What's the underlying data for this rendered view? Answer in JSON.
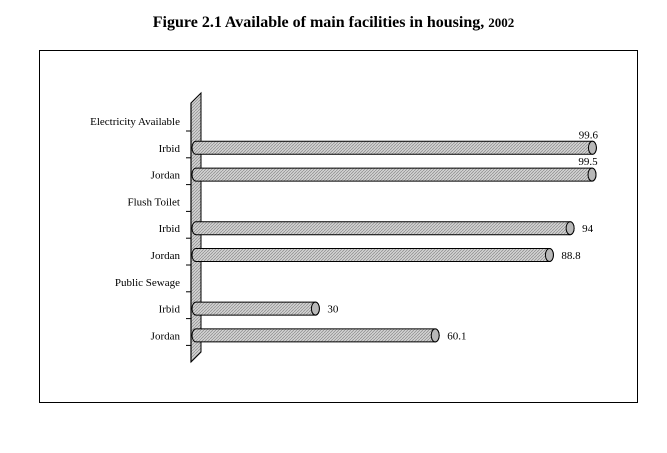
{
  "title": {
    "main": "Figure 2.1 Available of main facilities in housing,",
    "year": "2002"
  },
  "chart_data": {
    "type": "bar",
    "orientation": "horizontal",
    "groups": [
      {
        "label": "Electricity Available",
        "items": [
          {
            "label": "Irbid",
            "value": 99.6
          },
          {
            "label": "Jordan",
            "value": 99.5
          }
        ]
      },
      {
        "label": "Flush Toilet",
        "items": [
          {
            "label": "Irbid",
            "value": 94
          },
          {
            "label": "Jordan",
            "value": 88.8
          }
        ]
      },
      {
        "label": "Public Sewage",
        "items": [
          {
            "label": "Irbid",
            "value": 30
          },
          {
            "label": "Jordan",
            "value": 60.1
          }
        ]
      }
    ],
    "xlim": [
      0,
      100
    ],
    "grid": false,
    "legend": "none",
    "style": "3d-cylinder-hatched",
    "bar_color": "#c8c8c8"
  }
}
